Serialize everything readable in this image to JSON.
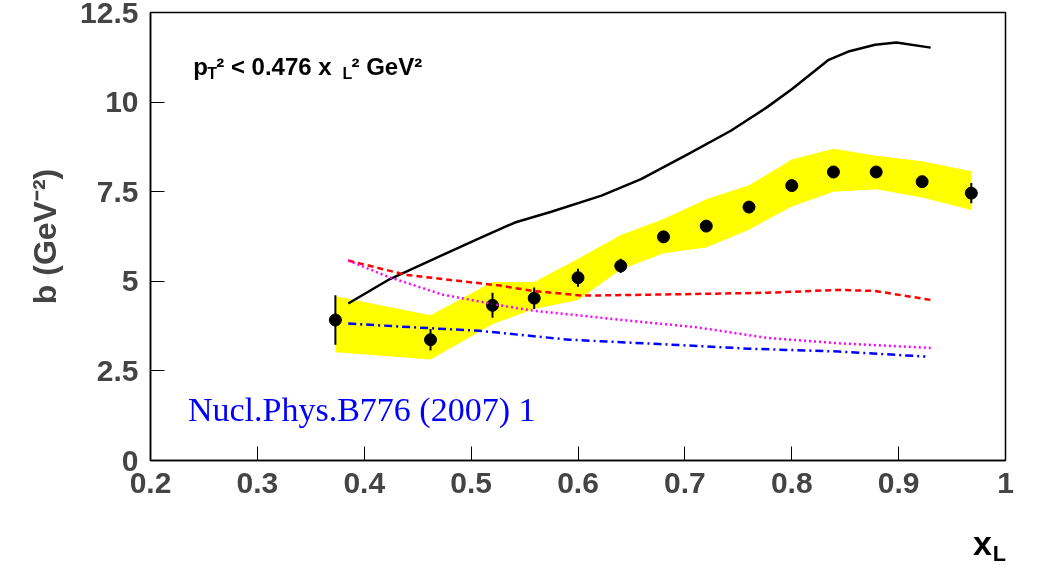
{
  "chart_data": {
    "type": "line",
    "xlabel": "x$_{L}$",
    "ylabel": "b (GeV⁻²)",
    "annotations": [
      "p$_{T}$² < 0.476 x$_{L}$² GeV²",
      "Nucl.Phys.B776 (2007) 1"
    ],
    "xlim": [
      0.2,
      1
    ],
    "xticks": [
      0.2,
      0.3,
      0.4,
      0.5,
      0.6,
      0.7,
      0.8,
      0.9,
      1
    ],
    "ylim": [
      0,
      12.5
    ],
    "yticks": [
      0,
      2.5,
      5,
      7.5,
      10,
      12.5
    ],
    "grid": false,
    "series": [
      {
        "type": "scatter",
        "marker": "circle",
        "color": "#000000",
        "x": [
          0.373,
          0.462,
          0.52,
          0.559,
          0.6,
          0.64,
          0.68,
          0.72,
          0.76,
          0.8,
          0.839,
          0.879,
          0.922,
          0.968
        ],
        "values": [
          3.92,
          3.37,
          4.33,
          4.53,
          5.1,
          5.43,
          6.24,
          6.54,
          7.07,
          7.67,
          8.05,
          8.05,
          7.78,
          7.46
        ],
        "errors": [
          0.69,
          0.3,
          0.35,
          0.3,
          0.25,
          0.2,
          null,
          null,
          null,
          null,
          null,
          null,
          null,
          0.28
        ],
        "lower": [
          3.02,
          2.82,
          3.8,
          4.23,
          4.48,
          5.33,
          5.78,
          5.94,
          6.44,
          7.09,
          7.5,
          7.57,
          7.34,
          6.99
        ],
        "upper": [
          4.58,
          4.05,
          4.98,
          4.98,
          5.63,
          6.29,
          6.74,
          7.29,
          7.68,
          8.4,
          8.7,
          8.5,
          8.35,
          8.07
        ]
      },
      {
        "line_style": "solid",
        "color": "#000000",
        "x": [
          0.385,
          0.422,
          0.473,
          0.507,
          0.541,
          0.575,
          0.622,
          0.659,
          0.703,
          0.743,
          0.777,
          0.8,
          0.834,
          0.854,
          0.878,
          0.898,
          0.93
        ],
        "values": [
          4.38,
          5.03,
          5.73,
          6.19,
          6.64,
          6.94,
          7.39,
          7.85,
          8.55,
          9.2,
          9.86,
          10.36,
          11.17,
          11.42,
          11.6,
          11.66,
          11.52
        ]
      },
      {
        "line_style": "dashdot",
        "color": "#0000ff",
        "x": [
          0.385,
          0.462,
          0.507,
          0.592,
          0.676,
          0.76,
          0.844,
          0.925
        ],
        "values": [
          3.82,
          3.69,
          3.62,
          3.37,
          3.25,
          3.12,
          3.04,
          2.9
        ]
      },
      {
        "line_style": "dashed",
        "color": "#ff0000",
        "x": [
          0.385,
          0.439,
          0.527,
          0.558,
          0.605,
          0.676,
          0.777,
          0.844,
          0.878,
          0.93
        ],
        "values": [
          5.58,
          5.18,
          4.88,
          4.73,
          4.6,
          4.63,
          4.68,
          4.76,
          4.73,
          4.48
        ]
      },
      {
        "line_style": "dotted",
        "color": "#ff00ff",
        "x": [
          0.385,
          0.422,
          0.473,
          0.527,
          0.558,
          0.642,
          0.71,
          0.777,
          0.844,
          0.93
        ],
        "values": [
          5.58,
          5.13,
          4.63,
          4.33,
          4.18,
          3.92,
          3.72,
          3.42,
          3.27,
          3.14
        ]
      }
    ]
  }
}
